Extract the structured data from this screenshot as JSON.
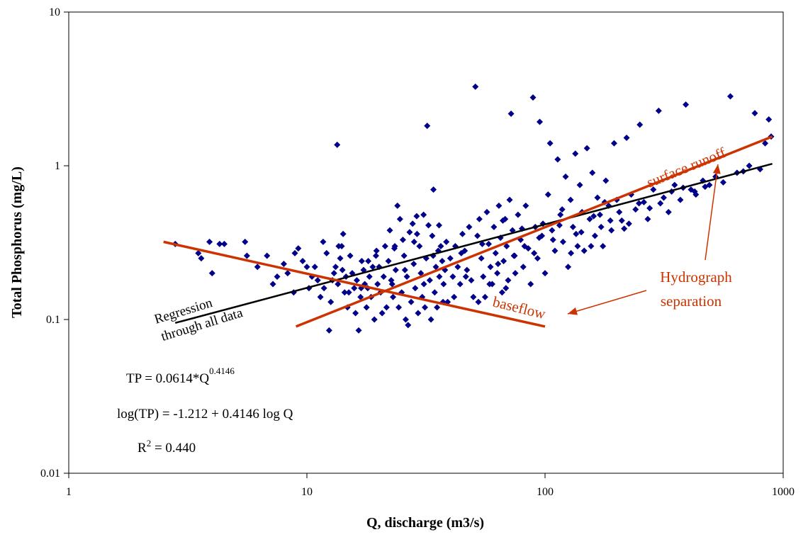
{
  "chart_data": {
    "type": "scatter",
    "x_scale": "log",
    "y_scale": "log",
    "xlim": [
      1,
      1000
    ],
    "ylim": [
      0.01,
      10
    ],
    "x_ticks": [
      1,
      10,
      100,
      1000
    ],
    "y_ticks": [
      0.01,
      0.1,
      1,
      10
    ],
    "x_tick_labels": [
      "1",
      "10",
      "100",
      "1000"
    ],
    "y_tick_labels": [
      "0.01",
      "0.1",
      "1",
      "10"
    ],
    "xlabel": "Q, discharge (m3/s)",
    "ylabel": "Total Phosphorus (mg/L)",
    "grid": false,
    "legend": "none",
    "colors": {
      "points": "#00008b",
      "regression": "#000000",
      "separation": "#cc3300",
      "axis": "#000000"
    },
    "lines": [
      {
        "id": "regression",
        "label": "Regression through all data",
        "label_lines": [
          "Regression",
          "through all data"
        ],
        "x": [
          2.8,
          900
        ],
        "y": [
          0.095,
          1.03
        ]
      },
      {
        "id": "baseflow",
        "label": "baseflow",
        "x": [
          2.5,
          100
        ],
        "y": [
          0.32,
          0.09
        ]
      },
      {
        "id": "surface_runoff",
        "label": "surface runoff",
        "x": [
          9,
          900
        ],
        "y": [
          0.09,
          1.55
        ]
      }
    ],
    "annotations": {
      "hydrograph": {
        "lines": [
          "Hydrograph",
          "separation"
        ]
      },
      "equation_main": "TP = 0.0614*Q",
      "equation_exp": "0.4146",
      "equation_log": "log(TP) = -1.212 + 0.4146 log Q",
      "r2_prefix": "R",
      "r2_sup": "2",
      "r2_rest": " = 0.440"
    },
    "points": [
      [
        2.8,
        0.31
      ],
      [
        3.5,
        0.27
      ],
      [
        3.6,
        0.25
      ],
      [
        3.9,
        0.32
      ],
      [
        4.0,
        0.2
      ],
      [
        4.3,
        0.31
      ],
      [
        4.5,
        0.31
      ],
      [
        5.5,
        0.32
      ],
      [
        5.6,
        0.26
      ],
      [
        6.2,
        0.22
      ],
      [
        6.8,
        0.26
      ],
      [
        7.2,
        0.17
      ],
      [
        7.5,
        0.19
      ],
      [
        8.0,
        0.23
      ],
      [
        8.3,
        0.2
      ],
      [
        8.8,
        0.15
      ],
      [
        8.9,
        0.27
      ],
      [
        9.2,
        0.29
      ],
      [
        9.6,
        0.24
      ],
      [
        10.0,
        0.22
      ],
      [
        10.2,
        0.16
      ],
      [
        10.5,
        0.19
      ],
      [
        10.8,
        0.22
      ],
      [
        11.1,
        0.18
      ],
      [
        11.4,
        0.14
      ],
      [
        11.7,
        0.32
      ],
      [
        11.8,
        0.16
      ],
      [
        12.1,
        0.27
      ],
      [
        12.4,
        0.085
      ],
      [
        12.6,
        0.13
      ],
      [
        12.8,
        0.18
      ],
      [
        13.0,
        0.2
      ],
      [
        13.2,
        0.22
      ],
      [
        13.4,
        1.37
      ],
      [
        13.5,
        0.17
      ],
      [
        13.8,
        0.25
      ],
      [
        14.0,
        0.3
      ],
      [
        14.2,
        0.36
      ],
      [
        14.4,
        0.15
      ],
      [
        14.6,
        0.19
      ],
      [
        14.8,
        0.12
      ],
      [
        15.0,
        0.15
      ],
      [
        15.2,
        0.26
      ],
      [
        15.5,
        0.2
      ],
      [
        15.8,
        0.16
      ],
      [
        16.0,
        0.11
      ],
      [
        16.2,
        0.18
      ],
      [
        16.5,
        0.085
      ],
      [
        16.8,
        0.14
      ],
      [
        17.0,
        0.24
      ],
      [
        17.3,
        0.21
      ],
      [
        17.5,
        0.17
      ],
      [
        17.8,
        0.12
      ],
      [
        18.0,
        0.16
      ],
      [
        18.3,
        0.19
      ],
      [
        18.6,
        0.14
      ],
      [
        18.9,
        0.22
      ],
      [
        19.2,
        0.1
      ],
      [
        19.5,
        0.26
      ],
      [
        19.8,
        0.17
      ],
      [
        20.1,
        0.22
      ],
      [
        20.4,
        0.15
      ],
      [
        20.7,
        0.11
      ],
      [
        21.0,
        0.19
      ],
      [
        21.3,
        0.3
      ],
      [
        21.6,
        0.12
      ],
      [
        22.0,
        0.24
      ],
      [
        22.3,
        0.38
      ],
      [
        22.6,
        0.18
      ],
      [
        23.0,
        0.14
      ],
      [
        23.3,
        0.29
      ],
      [
        23.6,
        0.21
      ],
      [
        24.0,
        0.55
      ],
      [
        24.3,
        0.12
      ],
      [
        24.6,
        0.45
      ],
      [
        25.0,
        0.15
      ],
      [
        25.3,
        0.33
      ],
      [
        25.6,
        0.26
      ],
      [
        26.0,
        0.1
      ],
      [
        26.3,
        0.19
      ],
      [
        26.6,
        0.092
      ],
      [
        27.0,
        0.37
      ],
      [
        27.4,
        0.13
      ],
      [
        27.8,
        0.42
      ],
      [
        28.1,
        0.23
      ],
      [
        28.5,
        0.16
      ],
      [
        28.9,
        0.47
      ],
      [
        29.3,
        0.11
      ],
      [
        29.7,
        0.3
      ],
      [
        30.1,
        0.2
      ],
      [
        30.5,
        0.14
      ],
      [
        30.9,
        0.48
      ],
      [
        31.3,
        0.12
      ],
      [
        31.7,
        0.25
      ],
      [
        32.0,
        1.82
      ],
      [
        32.4,
        0.41
      ],
      [
        32.8,
        0.18
      ],
      [
        33.2,
        0.1
      ],
      [
        33.6,
        0.35
      ],
      [
        34.0,
        0.7
      ],
      [
        34.4,
        0.15
      ],
      [
        34.8,
        0.22
      ],
      [
        35.2,
        0.12
      ],
      [
        35.6,
        0.28
      ],
      [
        36.0,
        0.19
      ],
      [
        36.5,
        0.3
      ],
      [
        37.0,
        0.24
      ],
      [
        37.5,
        0.17
      ],
      [
        38.0,
        0.21
      ],
      [
        38.5,
        0.32
      ],
      [
        39.0,
        0.13
      ],
      [
        40.0,
        0.25
      ],
      [
        41.0,
        0.19
      ],
      [
        42.0,
        0.3
      ],
      [
        43.0,
        0.22
      ],
      [
        44.0,
        0.17
      ],
      [
        45.0,
        0.36
      ],
      [
        46.0,
        0.28
      ],
      [
        47.0,
        0.21
      ],
      [
        48.0,
        0.4
      ],
      [
        49.0,
        0.18
      ],
      [
        50.0,
        0.14
      ],
      [
        51.0,
        3.27
      ],
      [
        52.0,
        0.35
      ],
      [
        53.0,
        0.45
      ],
      [
        54.0,
        0.25
      ],
      [
        55.0,
        0.19
      ],
      [
        56.0,
        0.14
      ],
      [
        57.0,
        0.5
      ],
      [
        58.0,
        0.31
      ],
      [
        59.0,
        0.22
      ],
      [
        60.0,
        0.17
      ],
      [
        61.0,
        0.4
      ],
      [
        62.0,
        0.27
      ],
      [
        63.0,
        0.2
      ],
      [
        64.0,
        0.55
      ],
      [
        65.0,
        0.34
      ],
      [
        66.0,
        0.15
      ],
      [
        67.0,
        0.24
      ],
      [
        68.0,
        0.45
      ],
      [
        69.0,
        0.3
      ],
      [
        70.0,
        0.18
      ],
      [
        71.0,
        0.6
      ],
      [
        72.0,
        2.18
      ],
      [
        73.0,
        0.38
      ],
      [
        74.0,
        0.26
      ],
      [
        75.0,
        0.2
      ],
      [
        77.0,
        0.48
      ],
      [
        79.0,
        0.33
      ],
      [
        81.0,
        0.22
      ],
      [
        83.0,
        0.55
      ],
      [
        85.0,
        0.29
      ],
      [
        87.0,
        0.17
      ],
      [
        89.0,
        2.78
      ],
      [
        91.0,
        0.4
      ],
      [
        93.0,
        0.25
      ],
      [
        95.0,
        1.93
      ],
      [
        97.0,
        0.35
      ],
      [
        100.0,
        0.2
      ],
      [
        103.0,
        0.65
      ],
      [
        105.0,
        1.4
      ],
      [
        107.0,
        0.38
      ],
      [
        110.0,
        0.28
      ],
      [
        113.0,
        1.1
      ],
      [
        116.0,
        0.48
      ],
      [
        119.0,
        0.32
      ],
      [
        122.0,
        0.85
      ],
      [
        125.0,
        0.22
      ],
      [
        128.0,
        0.6
      ],
      [
        131.0,
        0.4
      ],
      [
        134.0,
        1.2
      ],
      [
        137.0,
        0.3
      ],
      [
        140.0,
        0.75
      ],
      [
        143.0,
        0.5
      ],
      [
        146.0,
        0.28
      ],
      [
        150.0,
        1.3
      ],
      [
        154.0,
        0.45
      ],
      [
        158.0,
        0.9
      ],
      [
        162.0,
        0.35
      ],
      [
        166.0,
        0.62
      ],
      [
        170.0,
        0.48
      ],
      [
        175.0,
        0.3
      ],
      [
        180.0,
        0.8
      ],
      [
        185.0,
        0.55
      ],
      [
        190.0,
        0.38
      ],
      [
        195.0,
        1.4
      ],
      [
        200.0,
        0.6
      ],
      [
        210.0,
        0.44
      ],
      [
        220.0,
        1.52
      ],
      [
        230.0,
        0.65
      ],
      [
        240.0,
        0.52
      ],
      [
        250.0,
        1.85
      ],
      [
        260.0,
        0.58
      ],
      [
        270.0,
        0.45
      ],
      [
        285.0,
        0.7
      ],
      [
        300.0,
        2.28
      ],
      [
        315.0,
        0.62
      ],
      [
        330.0,
        0.5
      ],
      [
        350.0,
        0.75
      ],
      [
        370.0,
        0.6
      ],
      [
        390.0,
        2.5
      ],
      [
        410.0,
        0.7
      ],
      [
        430.0,
        0.65
      ],
      [
        460.0,
        0.8
      ],
      [
        490.0,
        0.75
      ],
      [
        520.0,
        0.85
      ],
      [
        560.0,
        0.78
      ],
      [
        600.0,
        2.83
      ],
      [
        640.0,
        0.9
      ],
      [
        680.0,
        0.92
      ],
      [
        720.0,
        1.0
      ],
      [
        760.0,
        2.2
      ],
      [
        800.0,
        0.95
      ],
      [
        840.0,
        1.4
      ],
      [
        870.0,
        2.0
      ],
      [
        890.0,
        1.55
      ],
      [
        14.1,
        0.21
      ],
      [
        16.9,
        0.16
      ],
      [
        19.6,
        0.28
      ],
      [
        22.8,
        0.17
      ],
      [
        25.8,
        0.21
      ],
      [
        28.2,
        0.32
      ],
      [
        31.0,
        0.17
      ],
      [
        33.9,
        0.26
      ],
      [
        37.3,
        0.13
      ],
      [
        41.5,
        0.14
      ],
      [
        46.5,
        0.19
      ],
      [
        52.5,
        0.13
      ],
      [
        58.5,
        0.17
      ],
      [
        63.5,
        0.23
      ],
      [
        68.5,
        0.16
      ],
      [
        74.5,
        0.26
      ],
      [
        82.0,
        0.3
      ],
      [
        90.0,
        0.27
      ],
      [
        98.0,
        0.42
      ],
      [
        108.0,
        0.33
      ],
      [
        118.0,
        0.52
      ],
      [
        128.5,
        0.27
      ],
      [
        142.0,
        0.37
      ],
      [
        156.0,
        0.3
      ],
      [
        172.0,
        0.4
      ],
      [
        188.0,
        0.44
      ],
      [
        205.0,
        0.5
      ],
      [
        225.0,
        0.42
      ],
      [
        248.0,
        0.57
      ],
      [
        275.0,
        0.53
      ],
      [
        305.0,
        0.57
      ],
      [
        340.0,
        0.68
      ],
      [
        380.0,
        0.72
      ],
      [
        425.0,
        0.68
      ],
      [
        470.0,
        0.73
      ],
      [
        13.6,
        0.3
      ],
      [
        18.1,
        0.24
      ],
      [
        23.4,
        0.3
      ],
      [
        29.0,
        0.36
      ],
      [
        35.9,
        0.41
      ],
      [
        44.5,
        0.27
      ],
      [
        54.5,
        0.31
      ],
      [
        66.5,
        0.44
      ],
      [
        80.0,
        0.39
      ],
      [
        94.5,
        0.34
      ],
      [
        115.0,
        0.41
      ],
      [
        135.0,
        0.36
      ],
      [
        160.0,
        0.47
      ],
      [
        178.0,
        0.58
      ],
      [
        215.0,
        0.39
      ]
    ]
  }
}
